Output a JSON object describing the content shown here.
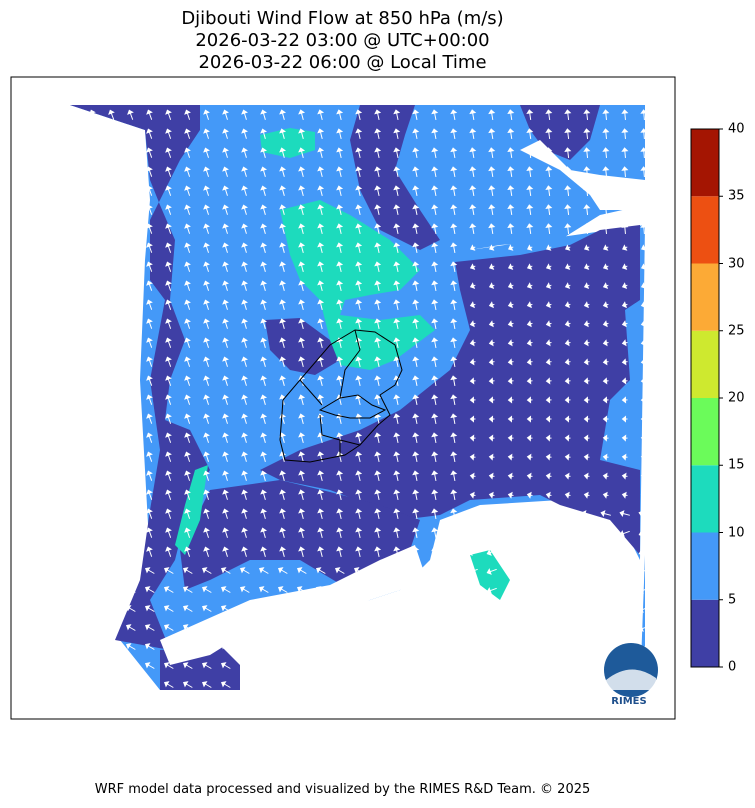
{
  "title": {
    "line1": "Djibouti Wind Flow at 850 hPa (m/s)",
    "line2": "2026-03-22 03:00 @ UTC+00:00",
    "line3": "2026-03-22 06:00 @ Local Time"
  },
  "colorbar": {
    "unit": "m/s",
    "levels": [
      "0",
      "5",
      "10",
      "15",
      "20",
      "25",
      "30",
      "35",
      "40"
    ],
    "colors": [
      "#3f3fa5",
      "#4499f8",
      "#1ddbbd",
      "#6bfb5a",
      "#cee92f",
      "#fcaa36",
      "#ed5012",
      "#a41502"
    ]
  },
  "map": {
    "region": "Djibouti",
    "variable": "wind speed and direction at 850 hPa",
    "background_color": "#ffffff",
    "border_color": "#000000",
    "arrow_color": "#ffffff"
  },
  "logo": {
    "text": "RIMES"
  },
  "footer": "WRF model data processed and visualized by the RIMES R&D Team. © 2025"
}
